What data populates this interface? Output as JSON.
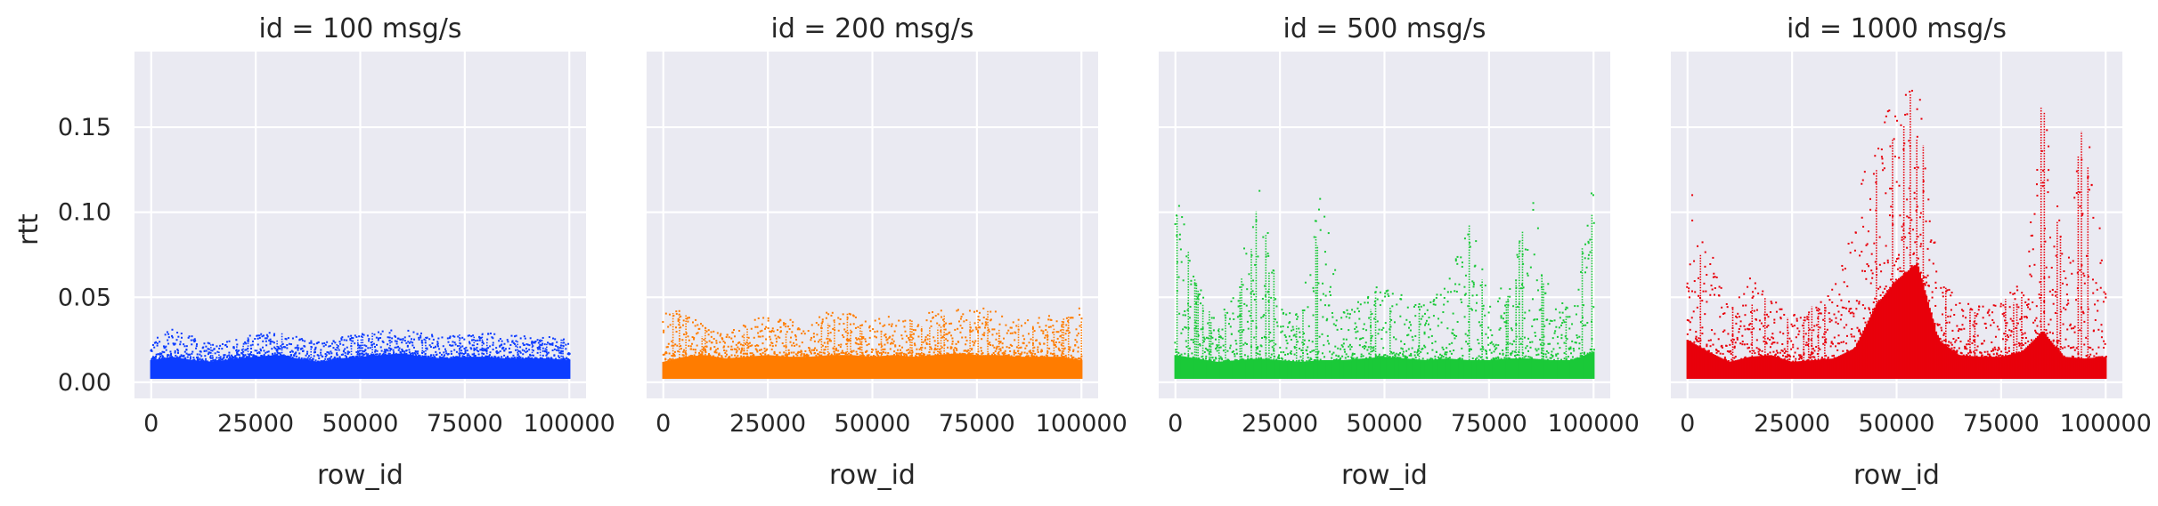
{
  "figure": {
    "ylabel": "rtt",
    "xlabel": "row_id",
    "background": "#eaeaf2",
    "grid_color": "#ffffff",
    "text_color": "#262626"
  },
  "chart_data": [
    {
      "type": "scatter",
      "title": "id = 100 msg/s",
      "color": "#0c3cff",
      "xlabel": "row_id",
      "ylabel": "rtt",
      "xlim": [
        -4000,
        104000
      ],
      "ylim": [
        -0.0095,
        0.1945
      ],
      "xticks": [
        0,
        25000,
        50000,
        75000,
        100000
      ],
      "xtick_labels": [
        "0",
        "25000",
        "50000",
        "75000",
        "100000"
      ],
      "yticks": [
        0.0,
        0.05,
        0.1,
        0.15
      ],
      "ytick_labels": [
        "0.00",
        "0.05",
        "0.10",
        "0.15"
      ],
      "grid": true,
      "x": [
        0,
        5000,
        10000,
        15000,
        20000,
        25000,
        30000,
        35000,
        40000,
        45000,
        50000,
        55000,
        60000,
        65000,
        70000,
        75000,
        80000,
        85000,
        90000,
        95000,
        100000
      ],
      "y_min": [
        0.002,
        0.002,
        0.002,
        0.002,
        0.002,
        0.002,
        0.002,
        0.002,
        0.002,
        0.002,
        0.002,
        0.002,
        0.002,
        0.002,
        0.002,
        0.002,
        0.002,
        0.002,
        0.002,
        0.002,
        0.002
      ],
      "y_dense": [
        0.013,
        0.015,
        0.013,
        0.012,
        0.014,
        0.015,
        0.016,
        0.014,
        0.012,
        0.014,
        0.015,
        0.016,
        0.017,
        0.015,
        0.014,
        0.015,
        0.015,
        0.014,
        0.014,
        0.014,
        0.013
      ],
      "y_max": [
        0.025,
        0.031,
        0.027,
        0.022,
        0.026,
        0.028,
        0.031,
        0.027,
        0.024,
        0.027,
        0.029,
        0.03,
        0.031,
        0.029,
        0.027,
        0.029,
        0.029,
        0.028,
        0.027,
        0.027,
        0.025
      ]
    },
    {
      "type": "scatter",
      "title": "id = 200 msg/s",
      "color": "#ff7c00",
      "xlabel": "row_id",
      "ylabel": "rtt",
      "xlim": [
        -4000,
        104000
      ],
      "ylim": [
        -0.0095,
        0.1945
      ],
      "xticks": [
        0,
        25000,
        50000,
        75000,
        100000
      ],
      "xtick_labels": [
        "0",
        "25000",
        "50000",
        "75000",
        "100000"
      ],
      "yticks": [
        0.0,
        0.05,
        0.1,
        0.15
      ],
      "ytick_labels": [
        "0.00",
        "0.05",
        "0.10",
        "0.15"
      ],
      "grid": true,
      "x": [
        0,
        5000,
        10000,
        15000,
        20000,
        25000,
        30000,
        35000,
        40000,
        45000,
        50000,
        55000,
        60000,
        65000,
        70000,
        75000,
        80000,
        85000,
        90000,
        95000,
        100000
      ],
      "y_min": [
        0.002,
        0.002,
        0.002,
        0.002,
        0.002,
        0.002,
        0.002,
        0.002,
        0.002,
        0.002,
        0.002,
        0.002,
        0.002,
        0.002,
        0.002,
        0.002,
        0.002,
        0.002,
        0.002,
        0.002,
        0.002
      ],
      "y_dense": [
        0.012,
        0.015,
        0.016,
        0.014,
        0.015,
        0.016,
        0.015,
        0.015,
        0.016,
        0.016,
        0.015,
        0.016,
        0.015,
        0.016,
        0.017,
        0.016,
        0.016,
        0.015,
        0.015,
        0.015,
        0.013
      ],
      "y_max": [
        0.04,
        0.044,
        0.033,
        0.028,
        0.035,
        0.04,
        0.038,
        0.034,
        0.043,
        0.04,
        0.036,
        0.04,
        0.038,
        0.042,
        0.044,
        0.044,
        0.042,
        0.038,
        0.04,
        0.038,
        0.044
      ]
    },
    {
      "type": "scatter",
      "title": "id = 500 msg/s",
      "color": "#1ac938",
      "xlabel": "row_id",
      "ylabel": "",
      "xlim": [
        -4000,
        104000
      ],
      "ylim": [
        -0.0095,
        0.1945
      ],
      "xticks": [
        0,
        25000,
        50000,
        75000,
        100000
      ],
      "xtick_labels": [
        "0",
        "25000",
        "50000",
        "75000",
        "100000"
      ],
      "yticks": [
        0.0,
        0.05,
        0.1,
        0.15
      ],
      "ytick_labels": [
        "0.00",
        "0.05",
        "0.10",
        "0.15"
      ],
      "grid": true,
      "x": [
        0,
        5000,
        10000,
        15000,
        20000,
        25000,
        30000,
        35000,
        40000,
        45000,
        50000,
        55000,
        60000,
        65000,
        70000,
        75000,
        80000,
        85000,
        90000,
        95000,
        100000
      ],
      "y_min": [
        0.002,
        0.002,
        0.002,
        0.002,
        0.002,
        0.002,
        0.002,
        0.002,
        0.002,
        0.002,
        0.002,
        0.002,
        0.002,
        0.002,
        0.002,
        0.002,
        0.002,
        0.002,
        0.002,
        0.002,
        0.002
      ],
      "y_dense": [
        0.016,
        0.014,
        0.012,
        0.013,
        0.014,
        0.013,
        0.012,
        0.013,
        0.013,
        0.014,
        0.015,
        0.014,
        0.013,
        0.014,
        0.013,
        0.013,
        0.014,
        0.014,
        0.013,
        0.013,
        0.018
      ],
      "y_max": [
        0.12,
        0.06,
        0.035,
        0.06,
        0.121,
        0.045,
        0.04,
        0.12,
        0.045,
        0.05,
        0.06,
        0.05,
        0.045,
        0.06,
        0.105,
        0.05,
        0.06,
        0.12,
        0.05,
        0.045,
        0.121
      ]
    },
    {
      "type": "scatter",
      "title": "id = 1000 msg/s",
      "color": "#e8000b",
      "xlabel": "row_id",
      "ylabel": "",
      "xlim": [
        -4000,
        104000
      ],
      "ylim": [
        -0.0095,
        0.1945
      ],
      "xticks": [
        0,
        25000,
        50000,
        75000,
        100000
      ],
      "xtick_labels": [
        "0",
        "25000",
        "50000",
        "75000",
        "100000"
      ],
      "yticks": [
        0.0,
        0.05,
        0.1,
        0.15
      ],
      "ytick_labels": [
        "0.00",
        "0.05",
        "0.10",
        "0.15"
      ],
      "grid": true,
      "x": [
        0,
        5000,
        10000,
        15000,
        20000,
        25000,
        30000,
        35000,
        40000,
        45000,
        50000,
        55000,
        60000,
        65000,
        70000,
        75000,
        80000,
        85000,
        90000,
        95000,
        100000
      ],
      "y_min": [
        0.002,
        0.002,
        0.002,
        0.002,
        0.002,
        0.002,
        0.002,
        0.002,
        0.002,
        0.002,
        0.002,
        0.002,
        0.002,
        0.002,
        0.002,
        0.002,
        0.002,
        0.002,
        0.002,
        0.002,
        0.002
      ],
      "y_dense": [
        0.025,
        0.018,
        0.012,
        0.015,
        0.016,
        0.012,
        0.013,
        0.014,
        0.02,
        0.045,
        0.06,
        0.07,
        0.025,
        0.016,
        0.015,
        0.015,
        0.018,
        0.03,
        0.015,
        0.014,
        0.015
      ],
      "y_max": [
        0.12,
        0.085,
        0.045,
        0.062,
        0.05,
        0.04,
        0.045,
        0.055,
        0.095,
        0.16,
        0.16,
        0.184,
        0.06,
        0.05,
        0.045,
        0.048,
        0.06,
        0.184,
        0.07,
        0.166,
        0.06
      ]
    }
  ]
}
